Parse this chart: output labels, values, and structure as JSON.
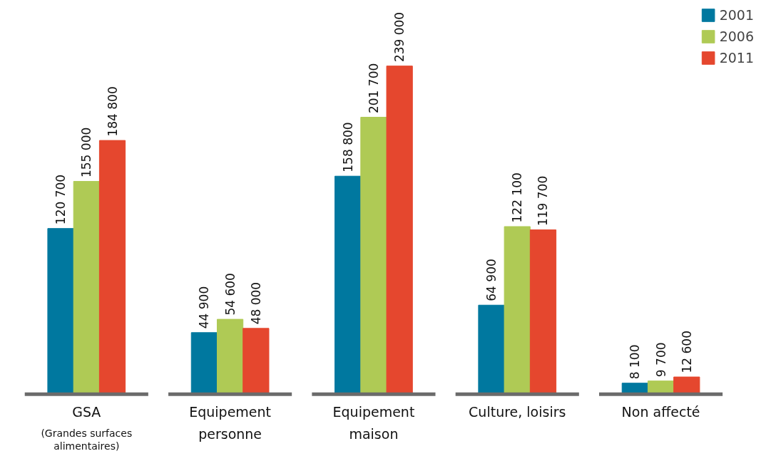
{
  "chart_data": {
    "type": "bar",
    "categories": [
      "GSA\n(Grandes surfaces\nalimentaires)",
      "Equipement\npersonne",
      "Equipement\nmaison",
      "Culture, loisirs",
      "Non affecté"
    ],
    "series": [
      {
        "name": "2001",
        "color": "#00789f",
        "values": [
          120700,
          44900,
          158800,
          64900,
          8100
        ],
        "value_labels": [
          "120 700",
          "44 900",
          "158 800",
          "64 900",
          "8 100"
        ]
      },
      {
        "name": "2006",
        "color": "#afca55",
        "values": [
          155000,
          54600,
          201700,
          122100,
          9700
        ],
        "value_labels": [
          "155 000",
          "54 600",
          "201 700",
          "122 100",
          "9 700"
        ]
      },
      {
        "name": "2011",
        "color": "#e5472e",
        "values": [
          184800,
          48000,
          239000,
          119700,
          12600
        ],
        "value_labels": [
          "184 800",
          "48 000",
          "239 000",
          "119 700",
          "12 600"
        ]
      }
    ],
    "legend": "top right",
    "grid": false,
    "tick_labels": "x"
  }
}
